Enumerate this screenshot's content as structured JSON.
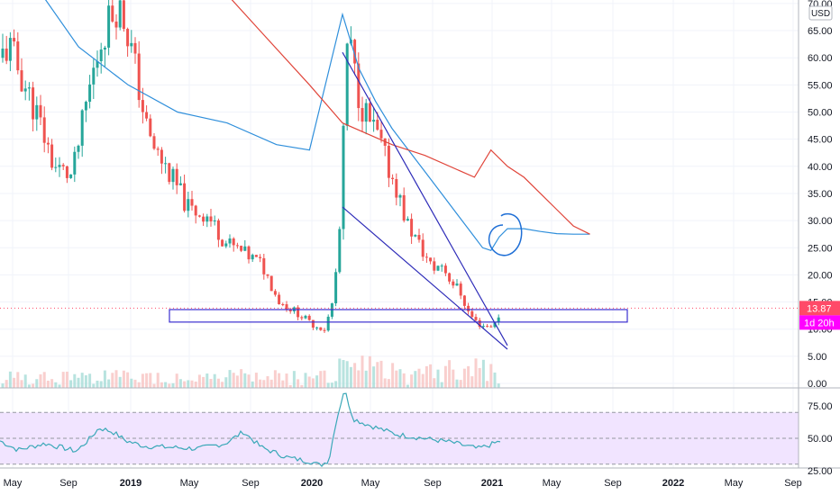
{
  "chart_data": {
    "type": "candlestick",
    "currency": "USD",
    "price_axis": {
      "ticks": [
        "70.00",
        "65.00",
        "60.00",
        "55.00",
        "50.00",
        "45.00",
        "40.00",
        "35.00",
        "30.00",
        "25.00",
        "20.00",
        "15.00",
        "10.00",
        "5.00",
        "0.00"
      ],
      "range": [
        0,
        70
      ]
    },
    "rsi_axis": {
      "ticks": [
        "75.00",
        "50.00",
        "25.00"
      ],
      "range": [
        20,
        95
      ],
      "band": [
        30,
        70
      ]
    },
    "x_axis": {
      "labels": [
        {
          "text": "May",
          "bold": false
        },
        {
          "text": "Sep",
          "bold": false
        },
        {
          "text": "2019",
          "bold": true
        },
        {
          "text": "May",
          "bold": false
        },
        {
          "text": "Sep",
          "bold": false
        },
        {
          "text": "2020",
          "bold": true
        },
        {
          "text": "May",
          "bold": false
        },
        {
          "text": "Sep",
          "bold": false
        },
        {
          "text": "2021",
          "bold": true
        },
        {
          "text": "May",
          "bold": false
        },
        {
          "text": "Sep",
          "bold": false
        },
        {
          "text": "2022",
          "bold": true
        },
        {
          "text": "May",
          "bold": false
        },
        {
          "text": "Sep",
          "bold": false
        }
      ]
    },
    "last_price": {
      "label": "13.87",
      "value": 13.87,
      "color": "#ff4a68"
    },
    "countdown": {
      "label": "1d 20h",
      "color": "#ff00ff"
    },
    "support_zone": [
      11.3,
      13.6
    ],
    "wedge_upper": [
      [
        0.0,
        61.0
      ],
      [
        1.0,
        7.0
      ]
    ],
    "wedge_lower": [
      [
        0.0,
        32.5
      ],
      [
        1.0,
        6.3
      ]
    ],
    "ma_fast": [
      [
        -0.1,
        75
      ],
      [
        0.0,
        68
      ],
      [
        0.1,
        58
      ],
      [
        0.2,
        52
      ],
      [
        0.3,
        47
      ],
      [
        0.4,
        43
      ],
      [
        0.5,
        39
      ],
      [
        0.6,
        35
      ],
      [
        0.7,
        31
      ],
      [
        0.8,
        27
      ],
      [
        0.85,
        25
      ],
      [
        0.9,
        24.5
      ],
      [
        0.95,
        27
      ],
      [
        1.0,
        28.5
      ],
      [
        1.1,
        28.5
      ],
      [
        1.2,
        28
      ],
      [
        1.3,
        27.6
      ],
      [
        1.4,
        27.5
      ],
      [
        1.5,
        27.5
      ]
    ],
    "ma_slow": [
      [
        -0.1,
        95
      ],
      [
        0.2,
        80
      ],
      [
        0.35,
        70
      ],
      [
        0.5,
        60
      ],
      [
        0.65,
        53
      ],
      [
        0.8,
        47
      ],
      [
        0.9,
        43
      ],
      [
        1.0,
        40
      ],
      [
        1.1,
        38
      ],
      [
        1.2,
        35
      ],
      [
        1.3,
        32
      ],
      [
        1.4,
        29
      ],
      [
        1.5,
        27.5
      ]
    ],
    "colors": {
      "up": "#26a69a",
      "down": "#ef5350",
      "ma_fast": "#2f8fdb",
      "ma_slow": "#e0453a",
      "rsi": "#3aa8b8",
      "rsi_band": "#f1e4ff",
      "wedge": "#2d2bb8",
      "circle": "#1f6fd6"
    }
  }
}
